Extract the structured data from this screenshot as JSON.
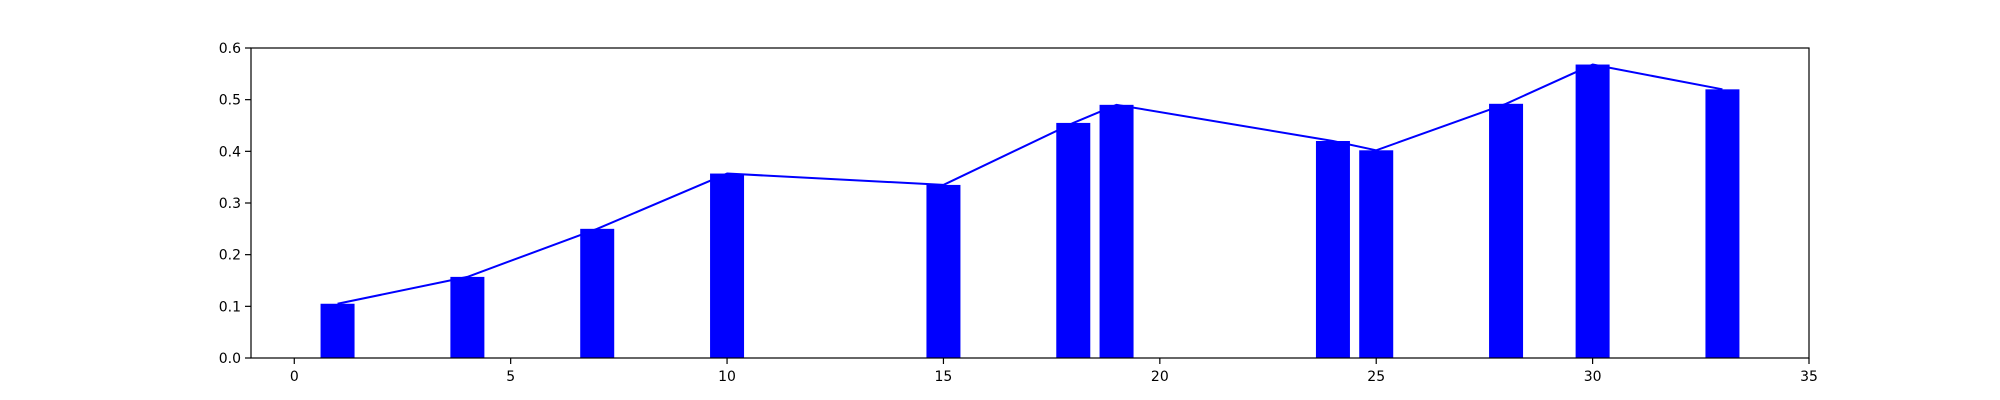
{
  "chart_data": {
    "type": "bar",
    "title": "",
    "xlabel": "",
    "ylabel": "",
    "xlim": [
      -1,
      35
    ],
    "ylim": [
      0,
      0.6
    ],
    "grid": false,
    "legend": "none",
    "bar_color": "#0000ff",
    "line_color": "#0000ff",
    "x": [
      1,
      4,
      7,
      10,
      15,
      18,
      19,
      24,
      25,
      28,
      30,
      33
    ],
    "series": [
      {
        "type": "bar",
        "values": [
          0.105,
          0.157,
          0.25,
          0.357,
          0.335,
          0.455,
          0.49,
          0.42,
          0.402,
          0.492,
          0.568,
          0.52
        ]
      },
      {
        "type": "line",
        "values": [
          0.105,
          0.157,
          0.25,
          0.357,
          0.335,
          0.455,
          0.49,
          0.42,
          0.402,
          0.492,
          0.568,
          0.52
        ]
      }
    ],
    "x_ticks": [
      0,
      5,
      10,
      15,
      20,
      25,
      30,
      35
    ],
    "y_ticks": [
      0.0,
      0.1,
      0.2,
      0.3,
      0.4,
      0.5,
      0.6
    ],
    "x_tick_labels": [
      "0",
      "5",
      "10",
      "15",
      "20",
      "25",
      "30",
      "35"
    ],
    "y_tick_labels": [
      "0.0",
      "0.1",
      "0.2",
      "0.3",
      "0.4",
      "0.5",
      "0.6"
    ]
  }
}
